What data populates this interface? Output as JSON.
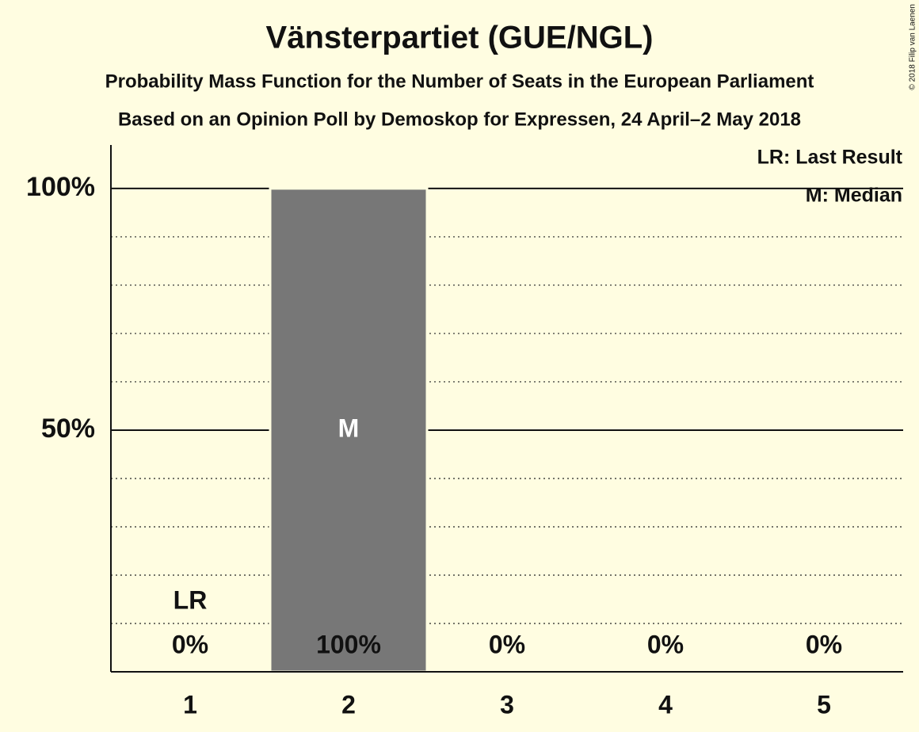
{
  "chart_data": {
    "type": "bar",
    "title": "Vänsterpartiet (GUE/NGL)",
    "subtitle": "Probability Mass Function for the Number of Seats in the European Parliament",
    "subtitle2": "Based on an Opinion Poll by Demoskop for Expressen, 24 April–2 May 2018",
    "categories": [
      "1",
      "2",
      "3",
      "4",
      "5"
    ],
    "values": [
      0,
      100,
      0,
      0,
      0
    ],
    "value_labels": [
      "0%",
      "100%",
      "0%",
      "0%",
      "0%"
    ],
    "color": "#777777",
    "ylim": [
      0,
      109
    ],
    "yticks": [
      {
        "value": 50,
        "label": "50%"
      },
      {
        "value": 100,
        "label": "100%"
      }
    ],
    "minor_yticks": [
      10,
      20,
      30,
      40,
      60,
      70,
      80,
      90
    ],
    "annotations": [
      {
        "text": "LR",
        "category": "1"
      },
      {
        "text": "M",
        "category": "2"
      }
    ],
    "legend": [
      "LR: Last Result",
      "M: Median"
    ],
    "copyright": "© 2018 Filip van Laenen"
  }
}
